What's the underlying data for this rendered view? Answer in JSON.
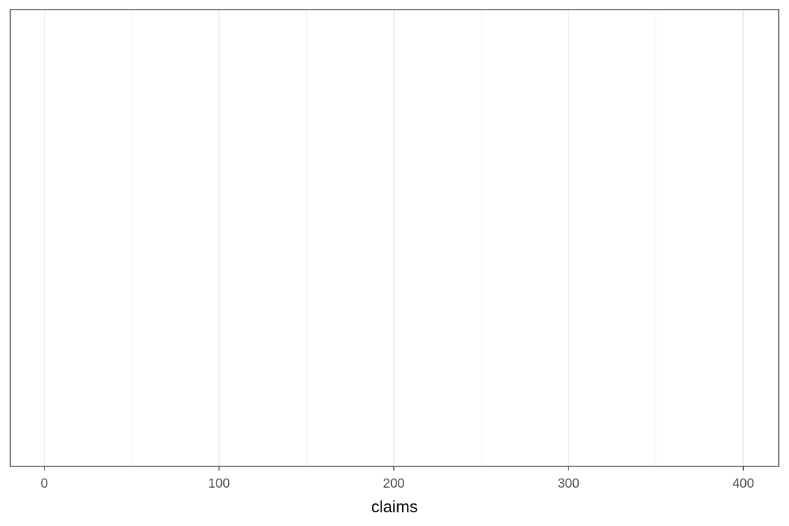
{
  "chart_data": {
    "type": "bar",
    "title": "",
    "xlabel": "claims",
    "ylabel": "",
    "x_ticks": [
      0,
      100,
      200,
      300,
      400
    ],
    "x_tick_labels": [
      "0",
      "100",
      "200",
      "300",
      "400"
    ],
    "x_minor_ticks": [
      50,
      150,
      250,
      350
    ],
    "xlim": [
      -19.5,
      420.3
    ],
    "y_ticks": [],
    "series": [],
    "grid": "vertical",
    "legend": "none"
  },
  "colors": {
    "background": "#ffffff",
    "panel_border": "#333333",
    "major_grid": "#ebebeb",
    "minor_grid": "#f2f2f2",
    "tick_label": "#4d4d4d",
    "axis_title": "#000000"
  }
}
